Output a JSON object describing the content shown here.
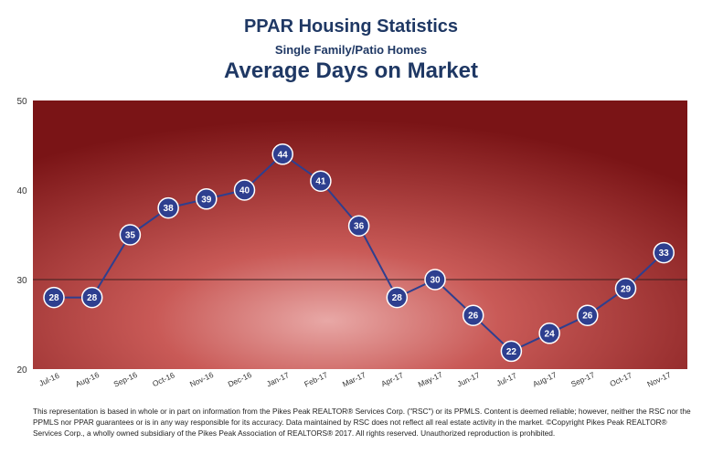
{
  "header": {
    "title": "PPAR Housing Statistics",
    "subtitle": "Single Family/Patio Homes",
    "chart_title": "Average Days on Market"
  },
  "chart_data": {
    "type": "line",
    "categories": [
      "Jul-16",
      "Aug-16",
      "Sep-16",
      "Oct-16",
      "Nov-16",
      "Dec-16",
      "Jan-17",
      "Feb-17",
      "Mar-17",
      "Apr-17",
      "May-17",
      "Jun-17",
      "Jul-17",
      "Aug-17",
      "Sep-17",
      "Oct-17",
      "Nov-17"
    ],
    "series": [
      {
        "values": [
          28,
          28,
          35,
          38,
          39,
          40,
          44,
          41,
          36,
          28,
          30,
          26,
          22,
          24,
          26,
          29,
          33
        ]
      }
    ],
    "ylim": [
      20,
      50
    ],
    "yticks": [
      20,
      30,
      40,
      50
    ],
    "reference_line": 30,
    "data_labels": true,
    "grid": false,
    "legend": "none",
    "colors": {
      "line": "#2e3f8f",
      "marker": "#2e3f8f",
      "plot_center": "#e8a8a6",
      "plot_edge": "#7a1416",
      "reference": "#3a1f1f",
      "title": "#1f3864"
    }
  },
  "footer": {
    "disclaimer": "This representation is based in whole or in part on information from the Pikes Peak REALTOR® Services Corp. (\"RSC\") or its PPMLS. Content is deemed reliable; however, neither the RSC nor the PPMLS nor PPAR guarantees or is in any way responsible for its accuracy. Data maintained by RSC does not reflect all real estate activity in the market. ©Copyright Pikes Peak REALTOR® Services Corp., a wholly owned subsidiary of the Pikes Peak Association of REALTORS® 2017. All rights reserved. Unauthorized reproduction is prohibited."
  }
}
